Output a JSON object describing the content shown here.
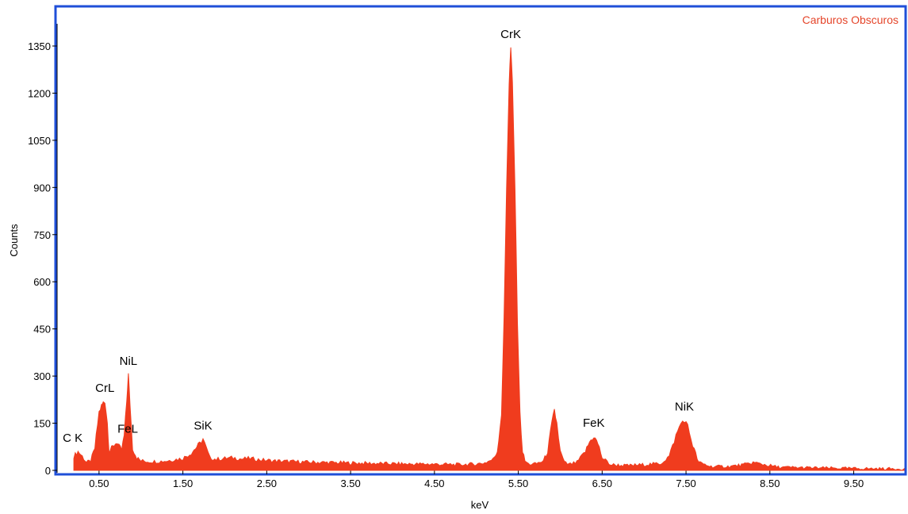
{
  "chart_data": {
    "type": "area",
    "title": "Carburos Obscuros",
    "xlabel": "keV",
    "ylabel": "Counts",
    "xlim": [
      0.0,
      10.1
    ],
    "ylim": [
      0,
      1410
    ],
    "xticks": [
      0.5,
      1.5,
      2.5,
      3.5,
      4.5,
      5.5,
      6.5,
      7.5,
      8.5,
      9.5
    ],
    "xtick_labels": [
      "0.50",
      "1.50",
      "2.50",
      "3.50",
      "4.50",
      "5.50",
      "6.50",
      "7.50",
      "8.50",
      "9.50"
    ],
    "yticks": [
      0,
      150,
      300,
      450,
      600,
      750,
      900,
      1050,
      1200,
      1350
    ],
    "ytick_labels": [
      "0",
      "150",
      "300",
      "450",
      "600",
      "750",
      "900",
      "1050",
      "1200",
      "1350"
    ],
    "peaks": [
      {
        "label": "C K",
        "x": 0.28,
        "y": 60
      },
      {
        "label": "CrL",
        "x": 0.57,
        "y": 220
      },
      {
        "label": "FeL",
        "x": 0.71,
        "y": 90
      },
      {
        "label": "NiL",
        "x": 0.85,
        "y": 305
      },
      {
        "label": "SiK",
        "x": 1.74,
        "y": 100
      },
      {
        "label": "CrK",
        "x": 5.41,
        "y": 1345
      },
      {
        "label": "FeK",
        "x": 6.4,
        "y": 108
      },
      {
        "label": "NiK",
        "x": 7.48,
        "y": 160
      }
    ],
    "series": [
      {
        "color": "#f03c1e",
        "x": [
          0.2,
          0.25,
          0.3,
          0.35,
          0.4,
          0.45,
          0.5,
          0.53,
          0.55,
          0.57,
          0.6,
          0.62,
          0.65,
          0.68,
          0.71,
          0.74,
          0.77,
          0.8,
          0.83,
          0.85,
          0.87,
          0.9,
          0.95,
          1.0,
          1.1,
          1.2,
          1.3,
          1.4,
          1.5,
          1.6,
          1.65,
          1.7,
          1.74,
          1.78,
          1.82,
          1.9,
          2.0,
          2.1,
          2.2,
          2.3,
          2.4,
          2.5,
          2.6,
          2.8,
          3.0,
          3.2,
          3.4,
          3.6,
          3.8,
          4.0,
          4.2,
          4.4,
          4.6,
          4.8,
          5.0,
          5.1,
          5.2,
          5.25,
          5.3,
          5.33,
          5.36,
          5.39,
          5.41,
          5.43,
          5.46,
          5.49,
          5.52,
          5.55,
          5.58,
          5.62,
          5.7,
          5.8,
          5.85,
          5.9,
          5.93,
          5.96,
          6.0,
          6.05,
          6.1,
          6.2,
          6.3,
          6.35,
          6.4,
          6.45,
          6.5,
          6.6,
          6.8,
          7.0,
          7.2,
          7.3,
          7.38,
          7.44,
          7.48,
          7.52,
          7.58,
          7.65,
          7.8,
          8.0,
          8.2,
          8.3,
          8.4,
          8.6,
          9.0,
          9.5,
          10.0,
          10.1
        ],
        "y": [
          45,
          60,
          45,
          25,
          30,
          70,
          185,
          205,
          215,
          220,
          150,
          60,
          70,
          80,
          90,
          75,
          65,
          110,
          220,
          305,
          210,
          70,
          40,
          30,
          28,
          28,
          30,
          34,
          38,
          55,
          70,
          85,
          100,
          70,
          40,
          35,
          38,
          40,
          36,
          38,
          34,
          32,
          30,
          28,
          26,
          25,
          24,
          23,
          22,
          21,
          20,
          20,
          19,
          18,
          20,
          24,
          35,
          60,
          180,
          480,
          900,
          1230,
          1345,
          1230,
          900,
          480,
          180,
          60,
          30,
          20,
          20,
          30,
          60,
          150,
          190,
          150,
          60,
          25,
          18,
          25,
          60,
          90,
          108,
          85,
          40,
          18,
          15,
          18,
          22,
          45,
          110,
          150,
          160,
          140,
          80,
          25,
          12,
          12,
          18,
          25,
          20,
          10,
          8,
          6,
          5,
          5
        ]
      }
    ]
  }
}
